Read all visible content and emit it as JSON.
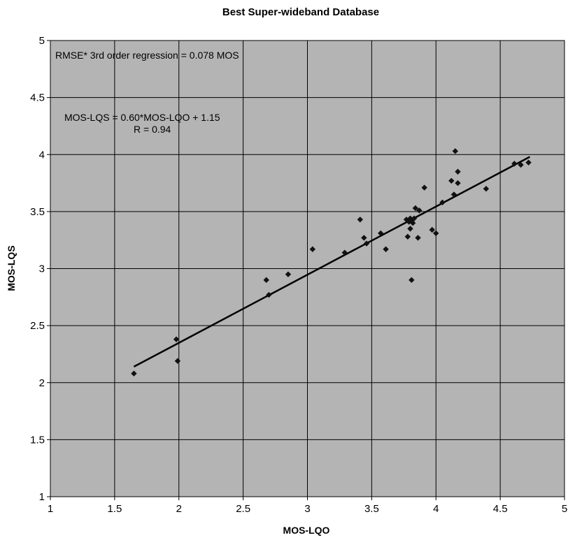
{
  "chart_data": {
    "type": "scatter",
    "title": "Best Super-wideband Database",
    "xlabel": "MOS-LQO",
    "ylabel": "MOS-LQS",
    "xlim": [
      1,
      5
    ],
    "ylim": [
      1,
      5
    ],
    "xticks": [
      "1",
      "1.5",
      "2",
      "2.5",
      "3",
      "3.5",
      "4",
      "4.5",
      "5"
    ],
    "yticks": [
      "1",
      "1.5",
      "2",
      "2.5",
      "3",
      "3.5",
      "4",
      "4.5",
      "5"
    ],
    "grid": true,
    "plot_background": "#b4b4b4",
    "marker_color": "#111111",
    "annotations": [
      "RMSE* 3rd order regression  = 0.078 MOS",
      "MOS-LQS = 0.60*MOS-LQO + 1.15",
      "R = 0.94"
    ],
    "points": [
      [
        1.65,
        2.08
      ],
      [
        1.98,
        2.38
      ],
      [
        1.99,
        2.19
      ],
      [
        2.68,
        2.9
      ],
      [
        2.7,
        2.77
      ],
      [
        2.85,
        2.95
      ],
      [
        3.04,
        3.17
      ],
      [
        3.29,
        3.14
      ],
      [
        3.41,
        3.43
      ],
      [
        3.44,
        3.27
      ],
      [
        3.46,
        3.22
      ],
      [
        3.57,
        3.31
      ],
      [
        3.61,
        3.17
      ],
      [
        3.77,
        3.43
      ],
      [
        3.78,
        3.28
      ],
      [
        3.79,
        3.41
      ],
      [
        3.8,
        3.44
      ],
      [
        3.8,
        3.35
      ],
      [
        3.81,
        3.42
      ],
      [
        3.82,
        3.4
      ],
      [
        3.83,
        3.44
      ],
      [
        3.81,
        2.9
      ],
      [
        3.84,
        3.53
      ],
      [
        3.86,
        3.27
      ],
      [
        3.87,
        3.51
      ],
      [
        3.91,
        3.71
      ],
      [
        3.97,
        3.34
      ],
      [
        4.0,
        3.31
      ],
      [
        4.05,
        3.58
      ],
      [
        4.12,
        3.77
      ],
      [
        4.14,
        3.65
      ],
      [
        4.15,
        4.03
      ],
      [
        4.17,
        3.85
      ],
      [
        4.17,
        3.75
      ],
      [
        4.39,
        3.7
      ],
      [
        4.61,
        3.92
      ],
      [
        4.66,
        3.91
      ],
      [
        4.72,
        3.93
      ]
    ],
    "trendline": {
      "x": [
        1.65,
        4.73
      ],
      "y": [
        2.14,
        3.98
      ]
    }
  }
}
